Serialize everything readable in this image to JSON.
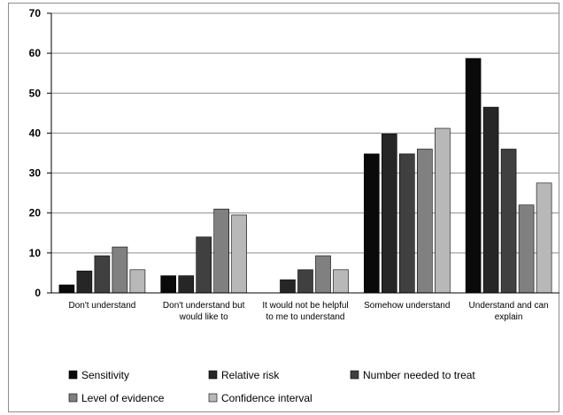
{
  "chart_data": {
    "type": "bar",
    "title": "",
    "xlabel": "",
    "ylabel": "",
    "ylim": [
      0,
      70
    ],
    "yticks": [
      0,
      10,
      20,
      30,
      40,
      50,
      60,
      70
    ],
    "grid": "horizontal",
    "legend_position": "bottom",
    "categories": [
      [
        "Don't understand"
      ],
      [
        "Don't understand but",
        "would like to"
      ],
      [
        "It would not be helpful",
        "to me to understand"
      ],
      [
        "Somehow understand"
      ],
      [
        "Understand and can",
        "explain"
      ]
    ],
    "series": [
      {
        "name": "Sensitivity",
        "color": "#0a0a0a",
        "values": [
          2,
          4.3,
          0,
          34.8,
          58.7
        ]
      },
      {
        "name": "Relative risk",
        "color": "#262626",
        "values": [
          5.5,
          4.3,
          3.3,
          39.8,
          46.5
        ]
      },
      {
        "name": "Number needed to treat",
        "color": "#404040",
        "values": [
          9.3,
          14,
          5.8,
          34.8,
          36
        ]
      },
      {
        "name": "Level of evidence",
        "color": "#808080",
        "values": [
          11.5,
          21,
          9.3,
          36,
          22
        ]
      },
      {
        "name": "Confidence interval",
        "color": "#b8b8b8",
        "values": [
          5.8,
          19.5,
          5.8,
          41.2,
          27.5
        ]
      }
    ]
  }
}
